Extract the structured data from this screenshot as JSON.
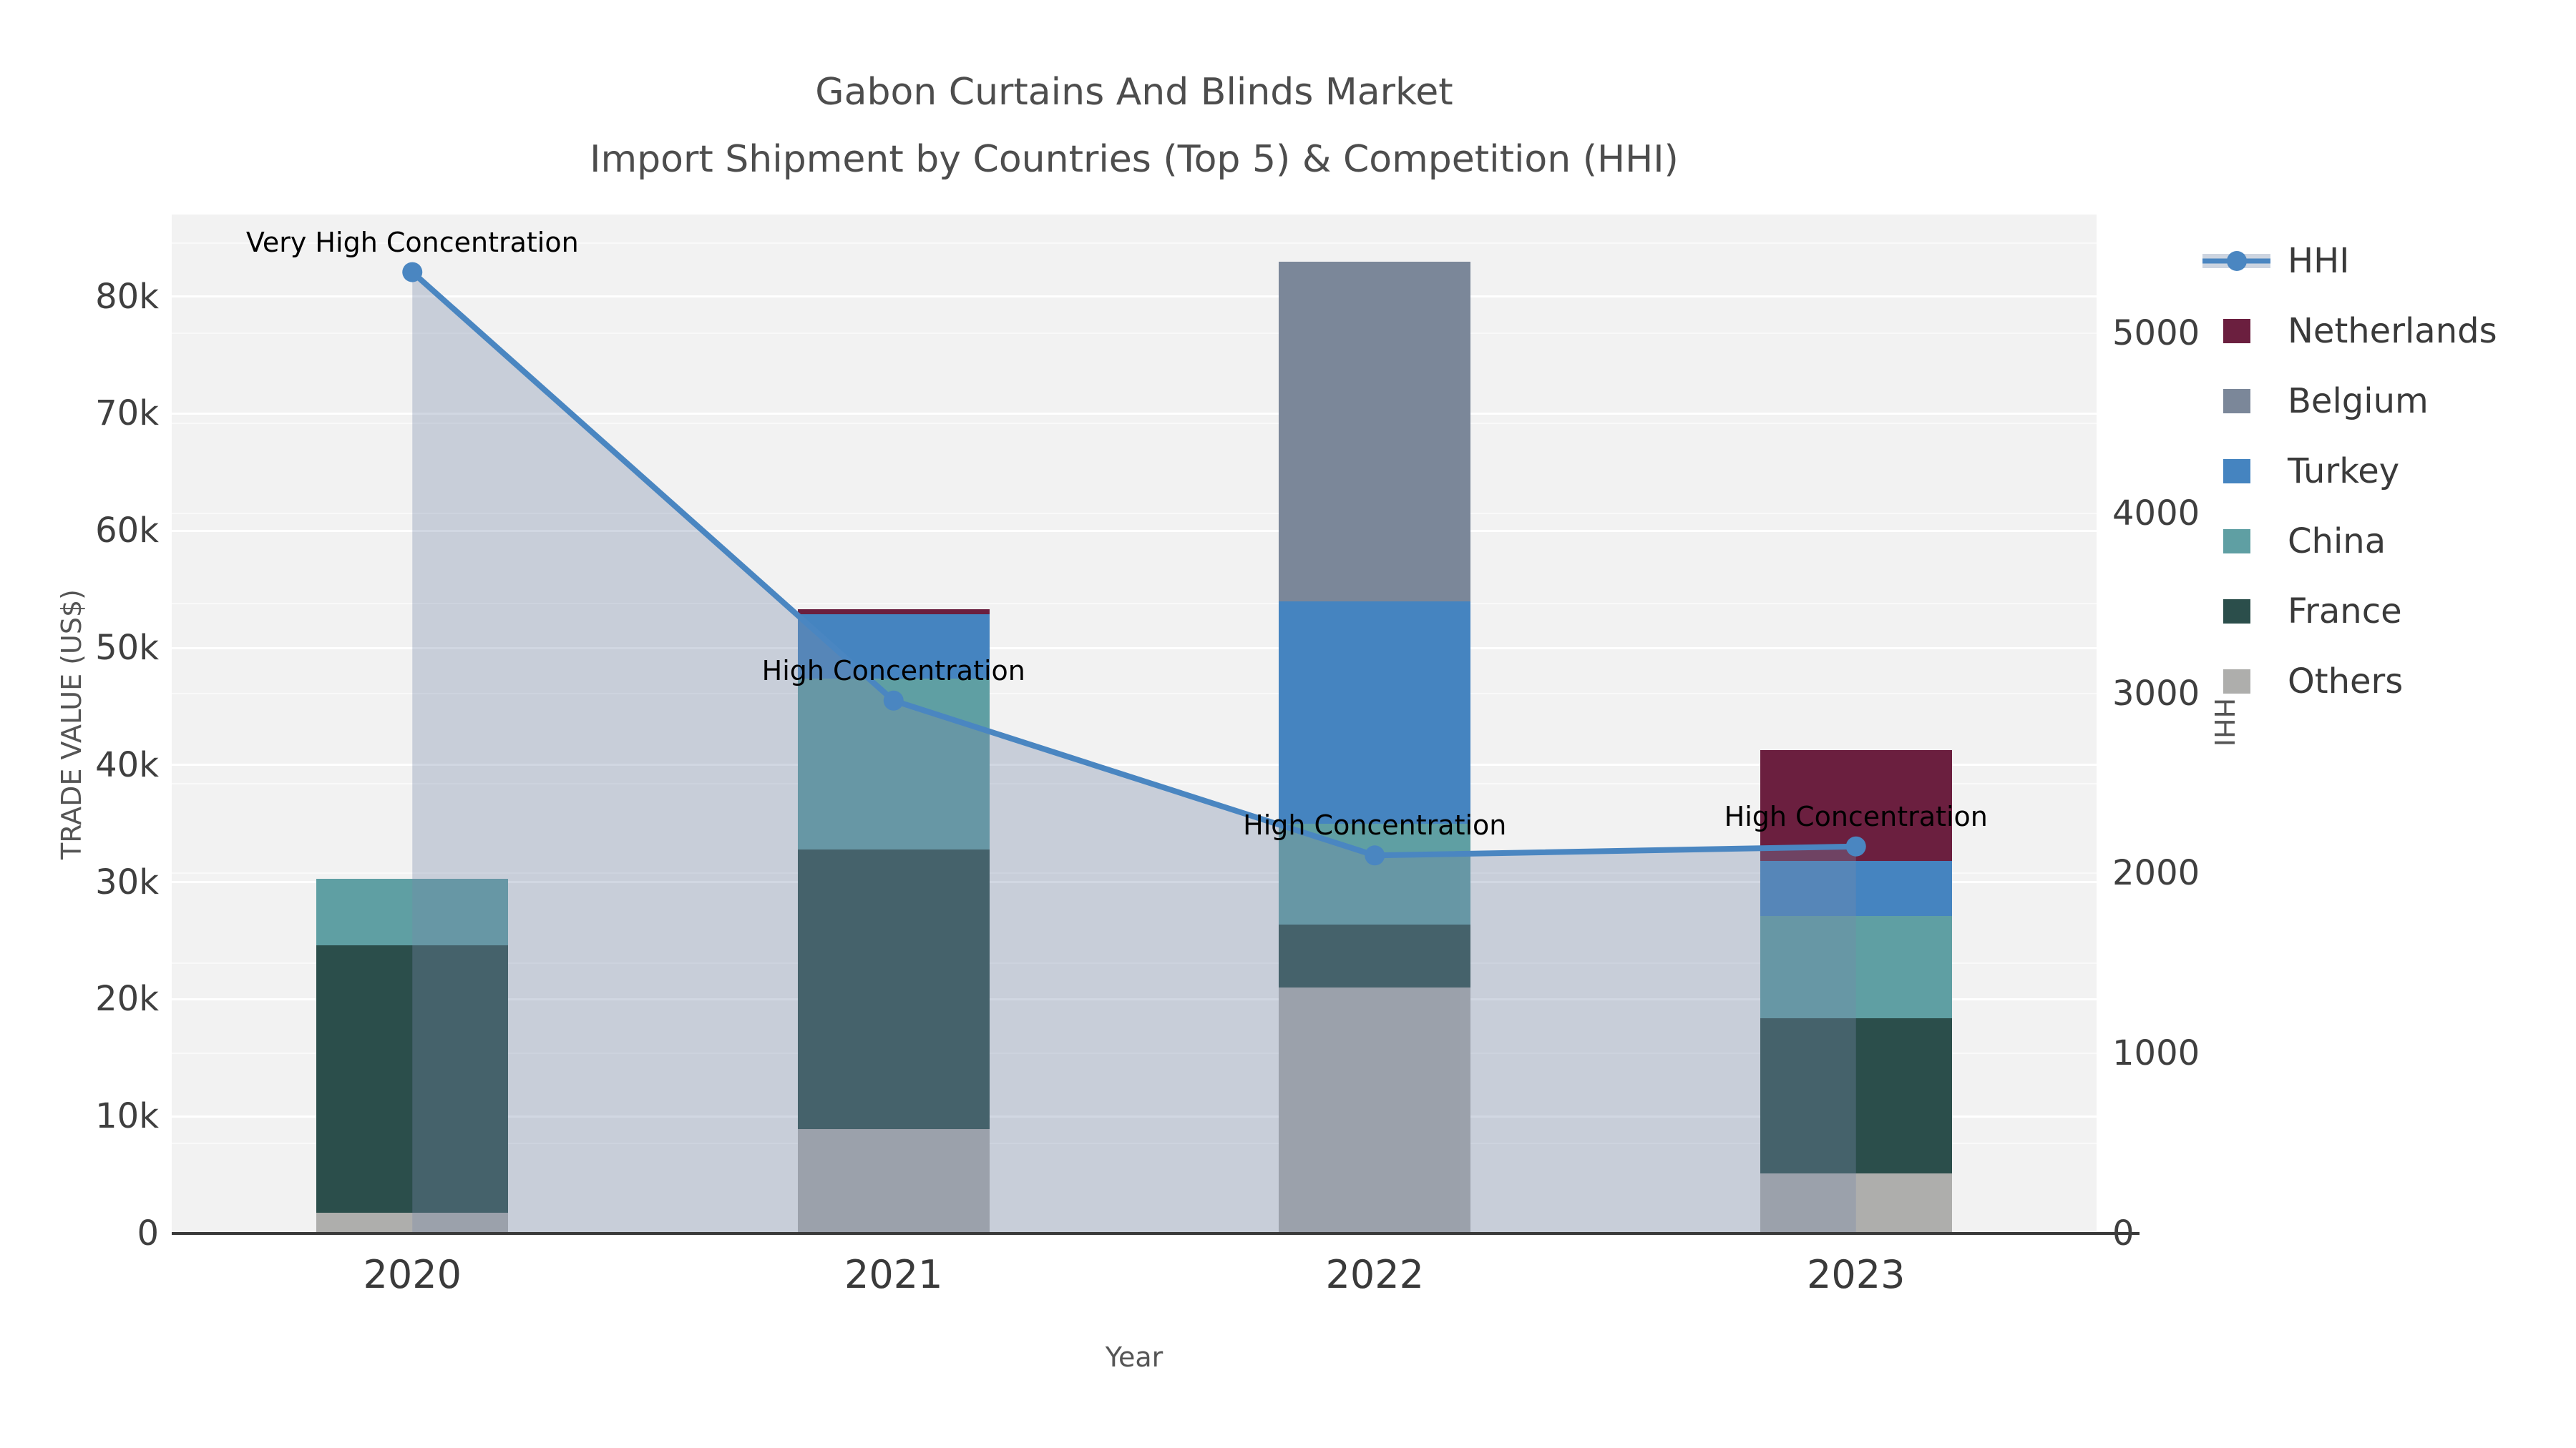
{
  "title": {
    "line1": "Gabon Curtains And Blinds Market",
    "line2": "Import Shipment by Countries (Top 5) & Competition (HHI)"
  },
  "axes": {
    "x": {
      "label": "Year",
      "categories": [
        "2020",
        "2021",
        "2022",
        "2023"
      ]
    },
    "y_left": {
      "label": "TRADE VALUE (US$)",
      "tick_labels": [
        "0",
        "10k",
        "20k",
        "30k",
        "40k",
        "50k",
        "60k",
        "70k",
        "80k"
      ],
      "tick_values": [
        0,
        10000,
        20000,
        30000,
        40000,
        50000,
        60000,
        70000,
        80000
      ]
    },
    "y_right": {
      "label": "HHI",
      "tick_labels": [
        "0",
        "1000",
        "2000",
        "3000",
        "4000",
        "5000"
      ],
      "tick_values": [
        0,
        1000,
        2000,
        3000,
        4000,
        5000
      ]
    }
  },
  "legend": {
    "items": [
      {
        "label": "HHI",
        "type": "line",
        "color": "#4a86c1"
      },
      {
        "label": "Netherlands",
        "type": "swatch",
        "color": "#6b1f3f"
      },
      {
        "label": "Belgium",
        "type": "swatch",
        "color": "#7b8799"
      },
      {
        "label": "Turkey",
        "type": "swatch",
        "color": "#4584c0"
      },
      {
        "label": "China",
        "type": "swatch",
        "color": "#5f9fa3"
      },
      {
        "label": "France",
        "type": "swatch",
        "color": "#2b4e4b"
      },
      {
        "label": "Others",
        "type": "swatch",
        "color": "#aeaeac"
      }
    ]
  },
  "annotations": [
    {
      "category": "2020",
      "text": "Very High Concentration"
    },
    {
      "category": "2021",
      "text": "High Concentration"
    },
    {
      "category": "2022",
      "text": "High Concentration"
    },
    {
      "category": "2023",
      "text": "High Concentration"
    }
  ],
  "chart_data": {
    "type": "bar+line",
    "title": "Gabon Curtains And Blinds Market — Import Shipment by Countries (Top 5) & Competition (HHI)",
    "categories": [
      "2020",
      "2021",
      "2022",
      "2023"
    ],
    "xlabel": "Year",
    "ylabel_left": "TRADE VALUE (US$)",
    "ylabel_right": "HHI",
    "ylim_left": [
      0,
      87000
    ],
    "ylim_right": [
      0,
      5660
    ],
    "grid": true,
    "legend_position": "right",
    "plot_background": "#f2f2f2",
    "stack_order_bottom_to_top": [
      "Others",
      "France",
      "China",
      "Turkey",
      "Belgium",
      "Netherlands"
    ],
    "series": [
      {
        "name": "Netherlands",
        "type": "bar",
        "color": "#6b1f3f",
        "values": [
          0,
          400,
          0,
          9500
        ]
      },
      {
        "name": "Belgium",
        "type": "bar",
        "color": "#7b8799",
        "values": [
          0,
          0,
          29000,
          0
        ]
      },
      {
        "name": "Turkey",
        "type": "bar",
        "color": "#4584c0",
        "values": [
          0,
          5500,
          19000,
          4700
        ]
      },
      {
        "name": "China",
        "type": "bar",
        "color": "#5f9fa3",
        "values": [
          5700,
          14600,
          8600,
          8700
        ]
      },
      {
        "name": "France",
        "type": "bar",
        "color": "#2b4e4b",
        "values": [
          22800,
          23900,
          5400,
          13300
        ]
      },
      {
        "name": "Others",
        "type": "bar",
        "color": "#aeaeac",
        "values": [
          1800,
          8900,
          21000,
          5100
        ]
      },
      {
        "name": "HHI",
        "type": "line",
        "axis": "right",
        "color": "#4a86c1",
        "marker": "circle",
        "area_fill": "rgba(119,137,169,0.34)",
        "values": [
          5340,
          2960,
          2100,
          2150
        ]
      }
    ],
    "bar_totals": [
      30300,
      53300,
      83000,
      41300
    ]
  }
}
